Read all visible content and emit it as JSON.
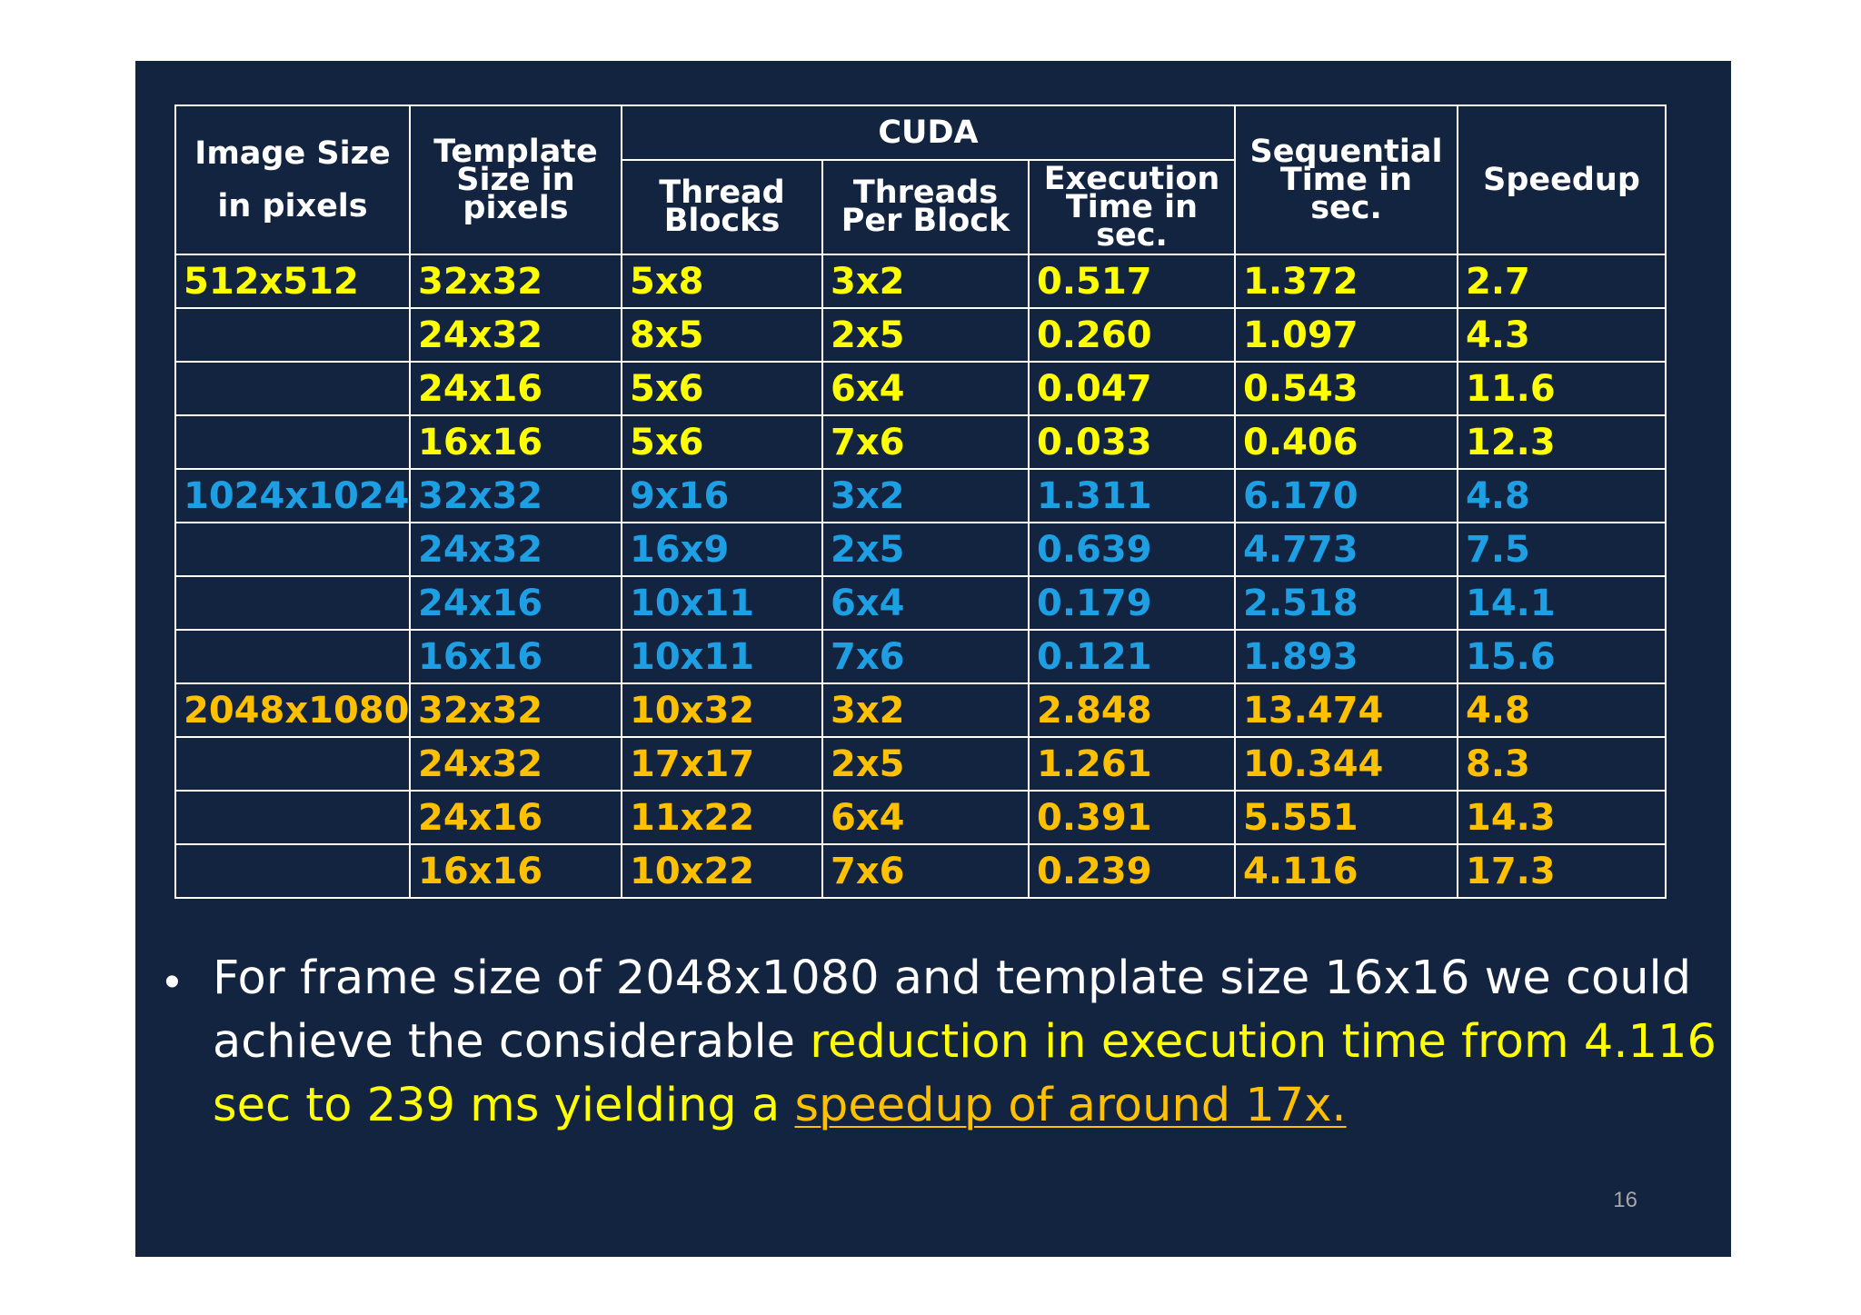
{
  "table": {
    "header": {
      "image_size": "Image Size in pixels",
      "template_size": "Template Size in pixels",
      "cuda": "CUDA",
      "thread_blocks": "Thread Blocks",
      "threads_per_block": "Threads Per Block",
      "execution_time": "Execution Time in sec.",
      "sequential_time": "Sequential Time in sec.",
      "speedup": "Speedup"
    },
    "rows": [
      {
        "image": "512x512",
        "template": "32x32",
        "blocks": "5x8",
        "threads": "3x2",
        "exec": "0.517",
        "seq": "1.372",
        "speedup": "2.7"
      },
      {
        "image": "",
        "template": "24x32",
        "blocks": "8x5",
        "threads": "2x5",
        "exec": "0.260",
        "seq": "1.097",
        "speedup": "4.3"
      },
      {
        "image": "",
        "template": "24x16",
        "blocks": "5x6",
        "threads": "6x4",
        "exec": "0.047",
        "seq": "0.543",
        "speedup": "11.6"
      },
      {
        "image": "",
        "template": "16x16",
        "blocks": "5x6",
        "threads": "7x6",
        "exec": "0.033",
        "seq": "0.406",
        "speedup": "12.3"
      },
      {
        "image": "1024x1024",
        "template": "32x32",
        "blocks": "9x16",
        "threads": "3x2",
        "exec": "1.311",
        "seq": "6.170",
        "speedup": "4.8"
      },
      {
        "image": "",
        "template": "24x32",
        "blocks": "16x9",
        "threads": "2x5",
        "exec": "0.639",
        "seq": "4.773",
        "speedup": "7.5"
      },
      {
        "image": "",
        "template": "24x16",
        "blocks": "10x11",
        "threads": "6x4",
        "exec": "0.179",
        "seq": "2.518",
        "speedup": "14.1"
      },
      {
        "image": "",
        "template": "16x16",
        "blocks": "10x11",
        "threads": "7x6",
        "exec": "0.121",
        "seq": "1.893",
        "speedup": "15.6"
      },
      {
        "image": "2048x1080",
        "template": "32x32",
        "blocks": "10x32",
        "threads": "3x2",
        "exec": "2.848",
        "seq": "13.474",
        "speedup": "4.8"
      },
      {
        "image": "",
        "template": "24x32",
        "blocks": "17x17",
        "threads": "2x5",
        "exec": "1.261",
        "seq": "10.344",
        "speedup": "8.3"
      },
      {
        "image": "",
        "template": "24x16",
        "blocks": "11x22",
        "threads": "6x4",
        "exec": "0.391",
        "seq": "5.551",
        "speedup": "14.3"
      },
      {
        "image": "",
        "template": "16x16",
        "blocks": "10x22",
        "threads": "7x6",
        "exec": "0.239",
        "seq": "4.116",
        "speedup": "17.3"
      }
    ]
  },
  "bullet": {
    "part1": "For frame size of 2048x1080  and template size 16x16 we could achieve the considerable ",
    "part2": "reduction in execution time from 4.116 sec to  239 ms yielding a ",
    "part3": "speedup of around 17x."
  },
  "page_number": "16",
  "colors": {
    "background": "#132440",
    "cuda_header": "#92d050",
    "group_512": "#ffff00",
    "group_1024": "#1e9fe4",
    "group_2048": "#ffc000"
  }
}
